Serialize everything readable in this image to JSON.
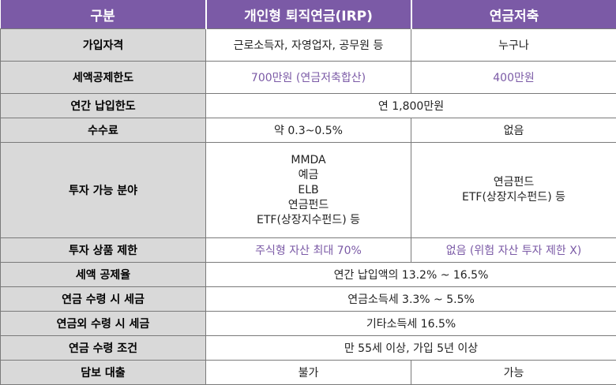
{
  "colors": {
    "header_bg": "#7b5aa6",
    "label_bg": "#d9d9d9",
    "accent_text": "#7b5aa6"
  },
  "table": {
    "headers": [
      "구분",
      "개인형 퇴직연금(IRP)",
      "연금저축"
    ],
    "rows": [
      {
        "label": "가입자격",
        "irp": "근로소득자, 자영업자, 공무원 등",
        "pension": "누구나"
      },
      {
        "label": "세액공제한도",
        "irp": "700만원 (연금저축합산)",
        "pension": "400만원"
      },
      {
        "label": "연간 납입한도",
        "merged": "연 1,800만원"
      },
      {
        "label": "수수료",
        "irp": "약 0.3~0.5%",
        "pension": "없음"
      },
      {
        "label": "투자 가능 분야",
        "irp_lines": [
          "MMDA",
          "예금",
          "ELB",
          "연금펀드",
          "ETF(상장지수펀드) 등"
        ],
        "pension_lines": [
          "연금펀드",
          "ETF(상장지수펀드) 등"
        ]
      },
      {
        "label": "투자 상품 제한",
        "irp": "주식형 자산 최대 70%",
        "pension": "없음 (위험 자산 투자 제한 X)"
      },
      {
        "label": "세액 공제율",
        "merged": "연간 납입액의 13.2% ~ 16.5%"
      },
      {
        "label": "연금 수령 시 세금",
        "merged": "연금소득세 3.3% ~ 5.5%"
      },
      {
        "label": "연금외 수령 시 세금",
        "merged": "기타소득세 16.5%"
      },
      {
        "label": "연금 수령 조건",
        "merged": "만 55세 이상, 가입 5년 이상"
      },
      {
        "label": "담보 대출",
        "irp": "불가",
        "pension": "가능"
      }
    ]
  }
}
